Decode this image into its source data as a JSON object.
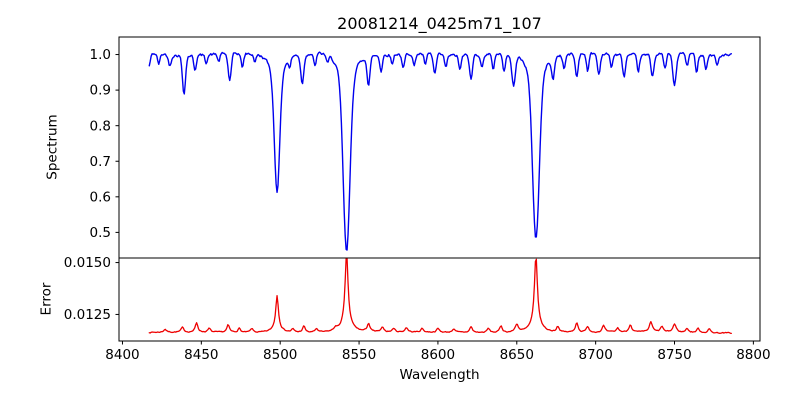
{
  "chart_data": {
    "type": "line",
    "title": "20081214_0425m71_107",
    "xlabel": "Wavelength",
    "grid": false,
    "legend_visible": false,
    "xlim": [
      8397.8,
      8804.2
    ],
    "x_ticks": [
      8400,
      8450,
      8500,
      8550,
      8600,
      8650,
      8700,
      8750,
      8800
    ],
    "x_tick_labels": [
      "8400",
      "8450",
      "8500",
      "8550",
      "8600",
      "8650",
      "8700",
      "8750",
      "8800"
    ],
    "data_wavelength_span": [
      8417,
      8786
    ],
    "key_features": {
      "deep_absorption_lines": [
        {
          "wavelength": 8498,
          "min_flux": 0.62
        },
        {
          "wavelength": 8542,
          "min_flux": 0.445
        },
        {
          "wavelength": 8662,
          "min_flux": 0.48
        }
      ],
      "error_peaks": [
        {
          "wavelength": 8498,
          "max_error": 0.0132
        },
        {
          "wavelength": 8542,
          "max_error": 0.015
        },
        {
          "wavelength": 8662,
          "max_error": 0.0149
        }
      ]
    },
    "panels": [
      {
        "name": "spectrum",
        "ylabel": "Spectrum",
        "line_color": "#0000ee",
        "line_width": 1.4,
        "ylim": [
          0.428,
          1.0493
        ],
        "y_ticks": [
          0.5,
          0.6,
          0.7,
          0.8,
          0.9,
          1.0
        ],
        "y_tick_labels": [
          "0.5",
          "0.6",
          "0.7",
          "0.8",
          "0.9",
          "1.0"
        ],
        "x_start": 8417,
        "x_end": 8786,
        "x_step": 0.6,
        "continuum": 1.0,
        "noise_sigma": 0.0045,
        "wave_amp": 0.003,
        "wave_period": 9,
        "noise_seed": 42,
        "absorption_lines": [
          [
            8416.5,
            0.04,
            1.0
          ],
          [
            8423,
            0.028,
            0.8
          ],
          [
            8430,
            0.03,
            0.9
          ],
          [
            8439,
            0.105,
            1.0
          ],
          [
            8446,
            0.04,
            0.8
          ],
          [
            8453,
            0.022,
            0.7
          ],
          [
            8461,
            0.022,
            0.7
          ],
          [
            8468,
            0.075,
            1.0
          ],
          [
            8476,
            0.038,
            0.8
          ],
          [
            8484,
            0.02,
            0.7
          ],
          [
            8498.02,
            0.33,
            1.7
          ],
          [
            8498.02,
            0.05,
            4.5
          ],
          [
            8506,
            0.025,
            0.7
          ],
          [
            8514,
            0.08,
            1.0
          ],
          [
            8522,
            0.035,
            0.8
          ],
          [
            8530,
            0.022,
            0.7
          ],
          [
            8542.09,
            0.49,
            2.1
          ],
          [
            8542.09,
            0.065,
            5.5
          ],
          [
            8556,
            0.085,
            0.9
          ],
          [
            8564,
            0.045,
            0.8
          ],
          [
            8571,
            0.028,
            0.7
          ],
          [
            8578,
            0.042,
            0.9
          ],
          [
            8585,
            0.035,
            0.8
          ],
          [
            8592,
            0.03,
            0.8
          ],
          [
            8598,
            0.055,
            0.9
          ],
          [
            8605,
            0.035,
            0.8
          ],
          [
            8614,
            0.04,
            0.8
          ],
          [
            8621,
            0.07,
            0.9
          ],
          [
            8628,
            0.038,
            0.8
          ],
          [
            8635,
            0.045,
            0.8
          ],
          [
            8642,
            0.05,
            0.9
          ],
          [
            8648,
            0.09,
            1.1
          ],
          [
            8662.14,
            0.455,
            2.1
          ],
          [
            8662.14,
            0.06,
            5.5
          ],
          [
            8673,
            0.06,
            0.9
          ],
          [
            8680,
            0.038,
            0.8
          ],
          [
            8688,
            0.065,
            0.9
          ],
          [
            8695,
            0.048,
            0.8
          ],
          [
            8702,
            0.058,
            0.9
          ],
          [
            8710,
            0.035,
            0.8
          ],
          [
            8718,
            0.06,
            0.9
          ],
          [
            8727,
            0.045,
            0.8
          ],
          [
            8736,
            0.06,
            0.9
          ],
          [
            8744,
            0.042,
            0.8
          ],
          [
            8750,
            0.09,
            1.1
          ],
          [
            8758,
            0.035,
            0.8
          ],
          [
            8764,
            0.048,
            0.8
          ],
          [
            8770,
            0.04,
            0.8
          ],
          [
            8777,
            0.028,
            0.8
          ]
        ]
      },
      {
        "name": "error",
        "ylabel": "Error",
        "line_color": "#ee0000",
        "line_width": 1.3,
        "ylim": [
          0.01122,
          0.01522
        ],
        "y_ticks": [
          0.0125,
          0.015
        ],
        "y_tick_labels": [
          "0.0125",
          "0.0150"
        ],
        "x_start": 8417,
        "x_end": 8786,
        "x_step": 0.6,
        "baseline": 0.01162,
        "noise_sigma": 2.8e-05,
        "wave_amp": 2e-05,
        "wave_period": 23,
        "noise_seed": 7,
        "peaks": [
          [
            8427,
            0.00015,
            1.0
          ],
          [
            8438,
            0.00022,
            1.0
          ],
          [
            8447,
            0.00045,
            1.0
          ],
          [
            8455,
            0.00018,
            1.0
          ],
          [
            8467,
            0.00035,
            1.0
          ],
          [
            8474,
            0.0002,
            1.0
          ],
          [
            8482,
            0.00018,
            1.0
          ],
          [
            8498.02,
            0.00155,
            1.0
          ],
          [
            8498.02,
            0.00025,
            3.5
          ],
          [
            8508,
            0.00015,
            1.0
          ],
          [
            8515,
            0.0003,
            1.0
          ],
          [
            8523,
            0.00018,
            1.0
          ],
          [
            8535,
            0.00015,
            1.0
          ],
          [
            8542.09,
            0.00335,
            1.1
          ],
          [
            8542.09,
            0.00045,
            4.0
          ],
          [
            8556,
            0.0004,
            1.0
          ],
          [
            8565,
            0.00022,
            1.0
          ],
          [
            8572,
            0.00018,
            1.0
          ],
          [
            8580,
            0.00022,
            1.0
          ],
          [
            8590,
            0.00018,
            1.0
          ],
          [
            8600,
            0.00018,
            1.0
          ],
          [
            8610,
            0.00018,
            1.0
          ],
          [
            8621,
            0.00028,
            1.0
          ],
          [
            8632,
            0.0002,
            1.0
          ],
          [
            8640,
            0.00032,
            1.0
          ],
          [
            8650,
            0.00038,
            1.2
          ],
          [
            8662.14,
            0.00325,
            1.1
          ],
          [
            8662.14,
            0.00045,
            4.0
          ],
          [
            8676,
            0.00028,
            1.0
          ],
          [
            8688,
            0.00048,
            1.0
          ],
          [
            8695,
            0.00028,
            1.0
          ],
          [
            8705,
            0.00032,
            1.0
          ],
          [
            8714,
            0.0002,
            1.0
          ],
          [
            8722,
            0.00038,
            1.0
          ],
          [
            8735,
            0.00048,
            1.2
          ],
          [
            8742,
            0.00028,
            1.0
          ],
          [
            8750,
            0.0004,
            1.2
          ],
          [
            8758,
            0.0002,
            1.0
          ],
          [
            8765,
            0.0002,
            1.0
          ],
          [
            8772,
            0.00018,
            1.0
          ]
        ]
      }
    ]
  }
}
